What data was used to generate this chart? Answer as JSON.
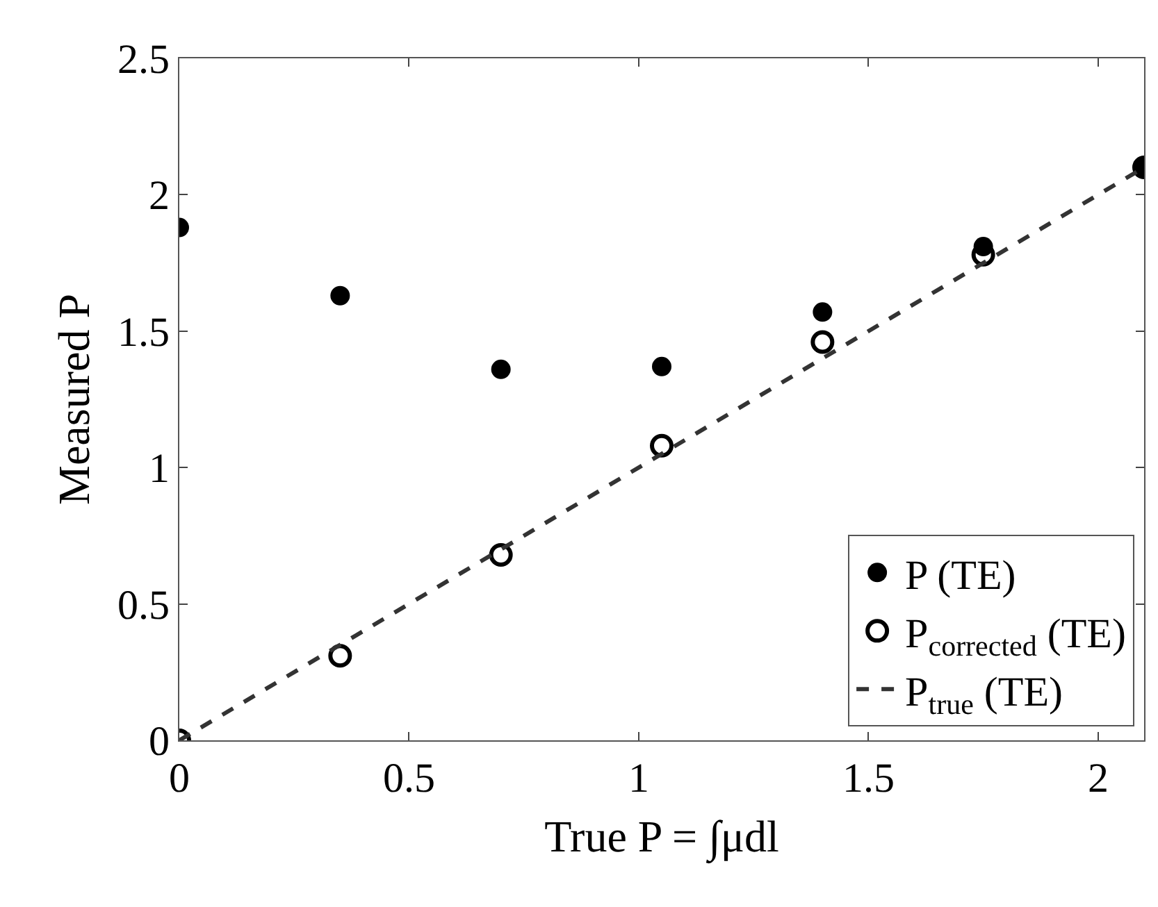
{
  "chart_data": {
    "type": "scatter",
    "xlabel": "True P = ∫μdl",
    "ylabel": "Measured P",
    "x": [
      0,
      0.35,
      0.7,
      1.05,
      1.4,
      1.75,
      2.1
    ],
    "series": [
      {
        "name": "P (TE)",
        "color": "#000000",
        "marker": "circle",
        "values": [
          1.88,
          1.63,
          1.36,
          1.37,
          1.57,
          1.81,
          2.1
        ]
      },
      {
        "name": "P$_{corrected}$ (TE)",
        "color": "#000000",
        "marker": "circle-open",
        "values": [
          0,
          0.31,
          0.68,
          1.08,
          1.46,
          1.78,
          2.1
        ]
      },
      {
        "name": "P$_{true}$ (TE)",
        "type": "line",
        "color": "#333333",
        "line_style": "dashed",
        "x": [
          0,
          2.1
        ],
        "values": [
          0,
          2.1
        ]
      }
    ],
    "xlim": [
      0,
      2.1
    ],
    "ylim": [
      0,
      2.5
    ],
    "xticks": [
      0,
      0.5,
      1,
      1.5,
      2
    ],
    "yticks": [
      0,
      0.5,
      1,
      1.5,
      2,
      2.5
    ],
    "grid": false,
    "legend": "bottom right"
  }
}
